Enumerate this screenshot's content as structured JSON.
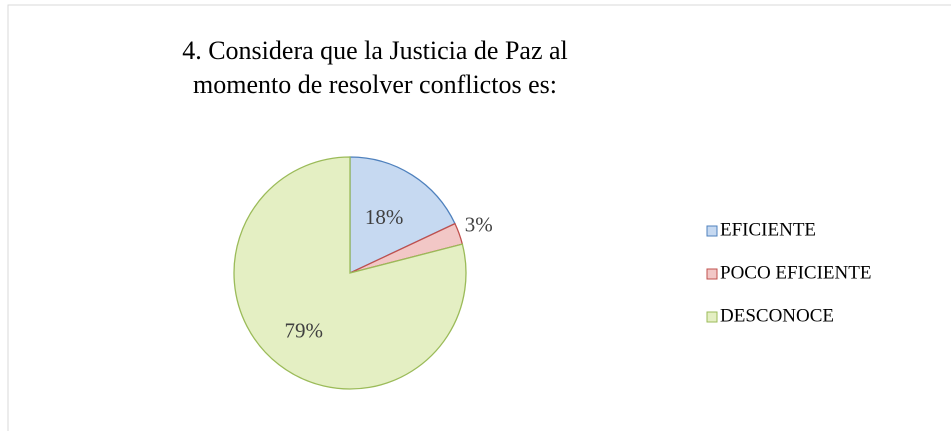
{
  "chart_data": {
    "type": "pie",
    "title": "4. Considera que la Justicia de Paz al momento de resolver conflictos es:",
    "categories": [
      "EFICIENTE",
      "POCO EFICIENTE",
      "DESCONOCE"
    ],
    "values": [
      18,
      3,
      79
    ],
    "value_labels": [
      "18%",
      "3%",
      "79%"
    ],
    "colors": [
      "#c6d9f1",
      "#f2c7c6",
      "#e4efc3"
    ],
    "edge_colors": [
      "#4f81bd",
      "#c0504d",
      "#9bbb59"
    ],
    "legend": "right"
  }
}
